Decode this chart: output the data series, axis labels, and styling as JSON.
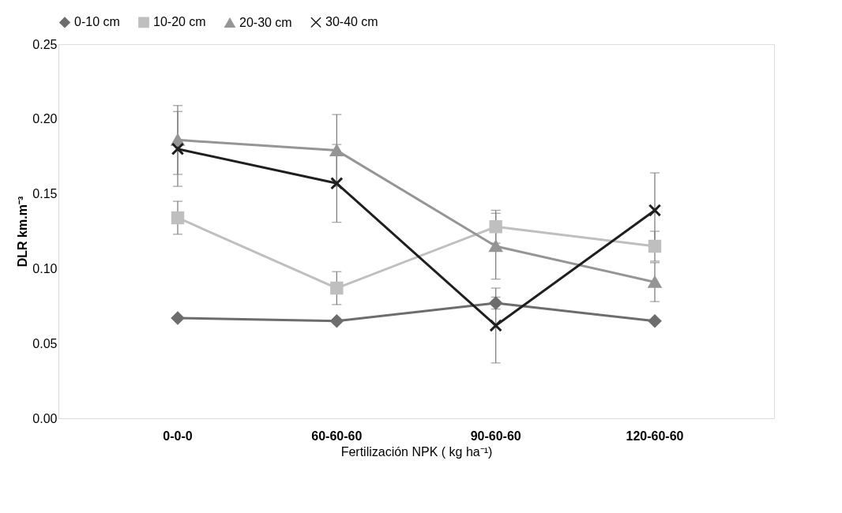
{
  "chart_data": {
    "type": "line",
    "xlabel": "Fertilización NPK ( kg ha⁻¹)",
    "ylabel": "DLR km.m⁻³",
    "categories": [
      "0-0-0",
      "60-60-60",
      "90-60-60",
      "120-60-60"
    ],
    "series": [
      {
        "name": "0-10 cm",
        "color": "#6d6d6d",
        "marker": "diamond",
        "values": [
          0.067,
          0.065,
          0.077,
          0.065
        ],
        "errors": [
          null,
          null,
          0.004,
          null
        ]
      },
      {
        "name": "10-20 cm",
        "color": "#bfbfbf",
        "marker": "square",
        "values": [
          0.134,
          0.087,
          0.128,
          0.115
        ],
        "errors": [
          0.011,
          0.011,
          0.011,
          0.01
        ]
      },
      {
        "name": "20-30 cm",
        "color": "#959595",
        "marker": "triangle",
        "values": [
          0.186,
          0.179,
          0.115,
          0.091
        ],
        "errors": [
          0.023,
          0.024,
          0.022,
          0.013
        ]
      },
      {
        "name": "30-40 cm",
        "color": "#1f1f1f",
        "marker": "cross",
        "values": [
          0.18,
          0.157,
          0.062,
          0.139
        ],
        "errors": [
          0.025,
          0.026,
          0.025,
          0.025
        ]
      }
    ],
    "ylim": [
      0,
      0.25
    ],
    "yticks": [
      {
        "value": 0,
        "label": "0.00"
      },
      {
        "value": 0.05,
        "label": "0.05"
      },
      {
        "value": 0.1,
        "label": "0.10"
      },
      {
        "value": 0.15,
        "label": "0.15"
      },
      {
        "value": 0.2,
        "label": "0.20"
      },
      {
        "value": 0.25,
        "label": "0.25"
      }
    ],
    "grid": false,
    "legend": "top",
    "line_style": "solid"
  }
}
